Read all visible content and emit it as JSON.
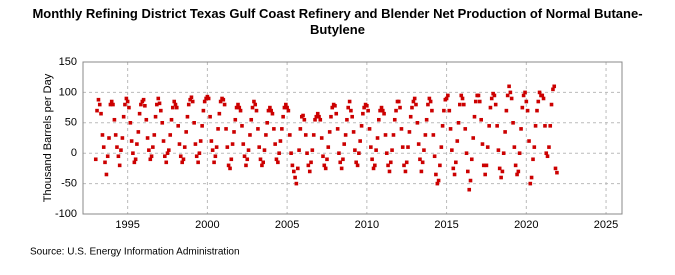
{
  "chart_data": {
    "type": "scatter",
    "title": "Monthly Refining District Texas Gulf Coast Refinery and Blender Net Production of Normal Butane-Butylene",
    "ylabel": "Thousand Barrels per Day",
    "source": "Source: U.S. Energy Information Administration",
    "color": "#cc0000",
    "grid": true,
    "xlim": [
      1992.2,
      2026
    ],
    "xticks": [
      1995,
      2000,
      2005,
      2010,
      2015,
      2020,
      2025
    ],
    "ylim": [
      -100,
      150
    ],
    "yticks": [
      -100,
      -50,
      0,
      50,
      100,
      150
    ],
    "x": [
      1993,
      1993.08,
      1993.17,
      1993.25,
      1993.33,
      1993.42,
      1993.5,
      1993.58,
      1993.67,
      1993.75,
      1993.83,
      1993.92,
      1994,
      1994.08,
      1994.17,
      1994.25,
      1994.33,
      1994.42,
      1994.5,
      1994.58,
      1994.67,
      1994.75,
      1994.83,
      1994.92,
      1995,
      1995.08,
      1995.17,
      1995.25,
      1995.33,
      1995.42,
      1995.5,
      1995.58,
      1995.67,
      1995.75,
      1995.83,
      1995.92,
      1996,
      1996.08,
      1996.17,
      1996.25,
      1996.33,
      1996.42,
      1996.5,
      1996.58,
      1996.67,
      1996.75,
      1996.83,
      1996.92,
      1997,
      1997.08,
      1997.17,
      1997.25,
      1997.33,
      1997.42,
      1997.5,
      1997.58,
      1997.67,
      1997.75,
      1997.83,
      1997.92,
      1998,
      1998.08,
      1998.17,
      1998.25,
      1998.33,
      1998.42,
      1998.5,
      1998.58,
      1998.67,
      1998.75,
      1998.83,
      1998.92,
      1999,
      1999.08,
      1999.17,
      1999.25,
      1999.33,
      1999.42,
      1999.5,
      1999.58,
      1999.67,
      1999.75,
      1999.83,
      1999.92,
      2000,
      2000.08,
      2000.17,
      2000.25,
      2000.33,
      2000.42,
      2000.5,
      2000.58,
      2000.67,
      2000.75,
      2000.83,
      2000.92,
      2001,
      2001.08,
      2001.17,
      2001.25,
      2001.33,
      2001.42,
      2001.5,
      2001.58,
      2001.67,
      2001.75,
      2001.83,
      2001.92,
      2002,
      2002.08,
      2002.17,
      2002.25,
      2002.33,
      2002.42,
      2002.5,
      2002.58,
      2002.67,
      2002.75,
      2002.83,
      2002.92,
      2003,
      2003.08,
      2003.17,
      2003.25,
      2003.33,
      2003.42,
      2003.5,
      2003.58,
      2003.67,
      2003.75,
      2003.83,
      2003.92,
      2004,
      2004.08,
      2004.17,
      2004.25,
      2004.33,
      2004.42,
      2004.5,
      2004.58,
      2004.67,
      2004.75,
      2004.83,
      2004.92,
      2005,
      2005.08,
      2005.17,
      2005.25,
      2005.33,
      2005.42,
      2005.5,
      2005.58,
      2005.67,
      2005.75,
      2005.83,
      2005.92,
      2006,
      2006.08,
      2006.17,
      2006.25,
      2006.33,
      2006.42,
      2006.5,
      2006.58,
      2006.67,
      2006.75,
      2006.83,
      2006.92,
      2007,
      2007.08,
      2007.17,
      2007.25,
      2007.33,
      2007.42,
      2007.5,
      2007.58,
      2007.67,
      2007.75,
      2007.83,
      2007.92,
      2008,
      2008.08,
      2008.17,
      2008.25,
      2008.33,
      2008.42,
      2008.5,
      2008.58,
      2008.67,
      2008.75,
      2008.83,
      2008.92,
      2009,
      2009.08,
      2009.17,
      2009.25,
      2009.33,
      2009.42,
      2009.5,
      2009.58,
      2009.67,
      2009.75,
      2009.83,
      2009.92,
      2010,
      2010.08,
      2010.17,
      2010.25,
      2010.33,
      2010.42,
      2010.5,
      2010.58,
      2010.67,
      2010.75,
      2010.83,
      2010.92,
      2011,
      2011.08,
      2011.17,
      2011.25,
      2011.33,
      2011.42,
      2011.5,
      2011.58,
      2011.67,
      2011.75,
      2011.83,
      2011.92,
      2012,
      2012.08,
      2012.17,
      2012.25,
      2012.33,
      2012.42,
      2012.5,
      2012.58,
      2012.67,
      2012.75,
      2012.83,
      2012.92,
      2013,
      2013.08,
      2013.17,
      2013.25,
      2013.33,
      2013.42,
      2013.5,
      2013.58,
      2013.67,
      2013.75,
      2013.83,
      2013.92,
      2014,
      2014.08,
      2014.17,
      2014.25,
      2014.33,
      2014.42,
      2014.5,
      2014.58,
      2014.67,
      2014.75,
      2014.83,
      2014.92,
      2015,
      2015.08,
      2015.17,
      2015.25,
      2015.33,
      2015.42,
      2015.5,
      2015.58,
      2015.67,
      2015.75,
      2015.83,
      2015.92,
      2016,
      2016.08,
      2016.17,
      2016.25,
      2016.33,
      2016.42,
      2016.5,
      2016.58,
      2016.67,
      2016.75,
      2016.83,
      2016.92,
      2017,
      2017.08,
      2017.17,
      2017.25,
      2017.33,
      2017.42,
      2017.5,
      2017.58,
      2017.67,
      2017.75,
      2017.83,
      2017.92,
      2018,
      2018.08,
      2018.17,
      2018.25,
      2018.33,
      2018.42,
      2018.5,
      2018.58,
      2018.67,
      2018.75,
      2018.83,
      2018.92,
      2019,
      2019.08,
      2019.17,
      2019.25,
      2019.33,
      2019.42,
      2019.5,
      2019.58,
      2019.67,
      2019.75,
      2019.83,
      2019.92,
      2020,
      2020.08,
      2020.17,
      2020.25,
      2020.33,
      2020.42,
      2020.5,
      2020.58,
      2020.67,
      2020.75,
      2020.83,
      2020.92,
      2021,
      2021.08,
      2021.17,
      2021.25,
      2021.33,
      2021.42,
      2021.5,
      2021.58,
      2021.67,
      2021.75,
      2021.83,
      2021.92
    ],
    "values": [
      -10,
      70,
      88,
      80,
      65,
      30,
      10,
      -15,
      -35,
      -5,
      25,
      80,
      85,
      80,
      55,
      30,
      10,
      -5,
      -20,
      5,
      25,
      60,
      80,
      90,
      85,
      75,
      50,
      20,
      0,
      -15,
      -10,
      15,
      35,
      65,
      80,
      85,
      88,
      78,
      55,
      25,
      5,
      -10,
      -5,
      10,
      30,
      60,
      80,
      90,
      82,
      70,
      50,
      20,
      -5,
      -15,
      0,
      5,
      30,
      55,
      75,
      85,
      80,
      75,
      45,
      15,
      -5,
      -15,
      -10,
      10,
      35,
      60,
      80,
      88,
      92,
      85,
      50,
      15,
      -5,
      -15,
      0,
      20,
      45,
      70,
      85,
      90,
      93,
      90,
      60,
      20,
      5,
      -15,
      -5,
      10,
      40,
      65,
      85,
      90,
      88,
      80,
      40,
      10,
      -20,
      -25,
      -10,
      15,
      35,
      55,
      75,
      80,
      75,
      70,
      45,
      15,
      -5,
      -20,
      -10,
      5,
      30,
      55,
      75,
      85,
      80,
      70,
      40,
      10,
      -10,
      -20,
      -15,
      5,
      30,
      50,
      70,
      75,
      70,
      65,
      40,
      15,
      -10,
      -15,
      0,
      20,
      40,
      60,
      75,
      80,
      75,
      70,
      30,
      0,
      -20,
      -30,
      -40,
      -50,
      -25,
      5,
      40,
      60,
      62,
      55,
      30,
      0,
      -20,
      -30,
      -15,
      5,
      30,
      55,
      60,
      65,
      60,
      55,
      25,
      -5,
      -20,
      -25,
      -10,
      10,
      35,
      60,
      75,
      80,
      78,
      65,
      40,
      0,
      -15,
      -25,
      -10,
      15,
      30,
      55,
      75,
      85,
      70,
      60,
      35,
      5,
      -15,
      -20,
      0,
      20,
      45,
      65,
      75,
      80,
      78,
      70,
      40,
      10,
      -10,
      -25,
      -20,
      5,
      25,
      55,
      70,
      75,
      70,
      65,
      30,
      0,
      -20,
      -30,
      -15,
      5,
      30,
      55,
      70,
      85,
      85,
      75,
      40,
      10,
      -20,
      -30,
      -15,
      10,
      35,
      60,
      75,
      85,
      90,
      80,
      50,
      15,
      -10,
      -30,
      -15,
      5,
      30,
      55,
      80,
      90,
      85,
      70,
      30,
      -5,
      -35,
      -50,
      -45,
      -20,
      10,
      45,
      70,
      88,
      90,
      95,
      70,
      40,
      5,
      -25,
      -35,
      -15,
      20,
      50,
      80,
      95,
      90,
      80,
      40,
      0,
      -30,
      -60,
      -45,
      -10,
      25,
      60,
      85,
      95,
      95,
      85,
      55,
      15,
      -20,
      -35,
      -20,
      10,
      45,
      75,
      90,
      98,
      95,
      80,
      45,
      5,
      -25,
      -40,
      -30,
      0,
      35,
      70,
      95,
      110,
      100,
      90,
      50,
      10,
      -20,
      -35,
      -30,
      0,
      40,
      75,
      95,
      100,
      85,
      70,
      20,
      -50,
      -40,
      -10,
      10,
      45,
      70,
      85,
      100,
      95,
      95,
      90,
      45,
      0,
      -5,
      10,
      45,
      80,
      105,
      110,
      -25,
      -32
    ]
  }
}
